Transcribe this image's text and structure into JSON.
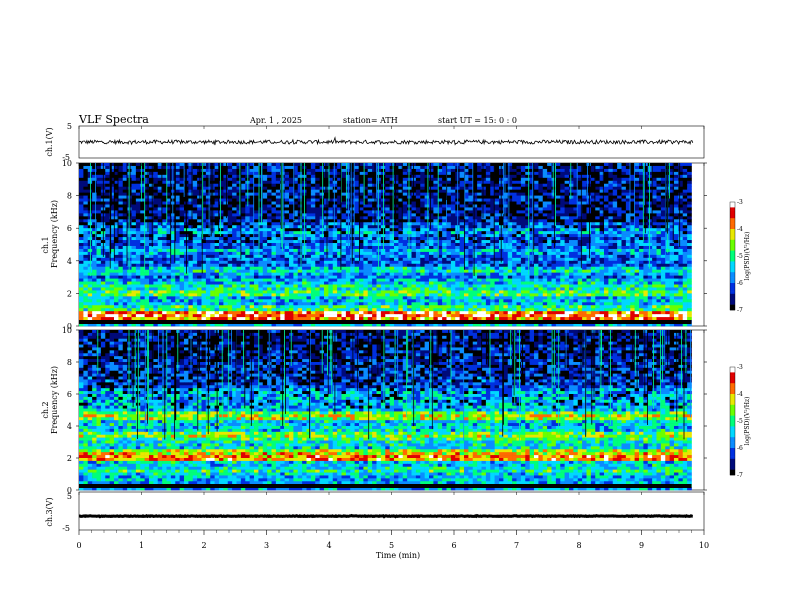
{
  "header": {
    "title": "VLF  Spectra",
    "date": "Apr. 1  , 2025",
    "station": "station= ATH",
    "start_ut": "start  UT  =    15: 0   : 0"
  },
  "chart_data": [
    {
      "type": "line",
      "panel": "ch1-waveform",
      "ylabel": "ch.1(V)",
      "ylim": [
        -5,
        5
      ],
      "yticks": [
        "5",
        "-5"
      ],
      "xlim": [
        0,
        10
      ],
      "series": [
        {
          "values_approx_range": [
            -0.8,
            0.8
          ]
        }
      ]
    },
    {
      "type": "heatmap",
      "panel": "ch1-spectrogram",
      "ylabel_channel": "ch.1",
      "ylabel": "Frequency  (kHz)",
      "ylim": [
        0,
        10
      ],
      "yticks": [
        "0",
        "2",
        "4",
        "6",
        "8",
        "10"
      ],
      "xlim": [
        0,
        9.8
      ],
      "colorbar": {
        "label": "log(PSD)(V²/Hz)",
        "range": [
          -7,
          -3
        ],
        "ticks": [
          "-3",
          "-4",
          "-5",
          "-6",
          "-7"
        ]
      },
      "bands": [
        {
          "freq_khz": 0.7,
          "level": -3.3
        },
        {
          "freq_khz": 1.1,
          "level": -4.8
        },
        {
          "freq_khz": 2.0,
          "level": -4.7
        },
        {
          "freq_khz": 2.4,
          "level": -5.0
        },
        {
          "freq_khz": 3.4,
          "level": -5.2
        },
        {
          "freq_khz": 4.6,
          "level": -5.5
        },
        {
          "freq_khz": 5.8,
          "level": -5.5
        }
      ]
    },
    {
      "type": "heatmap",
      "panel": "ch2-spectrogram",
      "ylabel_channel": "ch.2",
      "ylabel": "Frequency  (kHz)",
      "ylim": [
        0,
        10
      ],
      "yticks": [
        "0",
        "2",
        "4",
        "6",
        "8",
        "10"
      ],
      "xlim": [
        0,
        9.8
      ],
      "colorbar": {
        "label": "log(PSD)(V²/Hz)",
        "range": [
          -7,
          -3
        ],
        "ticks": [
          "-3",
          "-4",
          "-5",
          "-6",
          "-7"
        ]
      },
      "bands": [
        {
          "freq_khz": 2.0,
          "level": -3.6
        },
        {
          "freq_khz": 2.3,
          "level": -4.2
        },
        {
          "freq_khz": 3.4,
          "level": -4.5
        },
        {
          "freq_khz": 4.6,
          "level": -4.3
        },
        {
          "freq_khz": 1.2,
          "level": -5.0
        }
      ]
    },
    {
      "type": "line",
      "panel": "ch3-waveform",
      "ylabel": "ch.3(V)",
      "ylim": [
        -5,
        5
      ],
      "yticks": [
        "5",
        "-5"
      ],
      "xlim": [
        0,
        10
      ],
      "series": [
        {
          "values_approx_range": [
            -1.5,
            -1.2
          ]
        }
      ]
    }
  ],
  "xaxis": {
    "label": "Time  (min)",
    "range": [
      0,
      10
    ],
    "ticks": [
      "0",
      "1",
      "2",
      "3",
      "4",
      "5",
      "6",
      "7",
      "8",
      "9",
      "10"
    ]
  },
  "colors": {
    "colormap": [
      "#000000",
      "#000a7a",
      "#0030e0",
      "#0a8cff",
      "#00d8ff",
      "#00ff7a",
      "#6aff00",
      "#e8e800",
      "#ff6a00",
      "#e00000",
      "#ffffff"
    ]
  }
}
